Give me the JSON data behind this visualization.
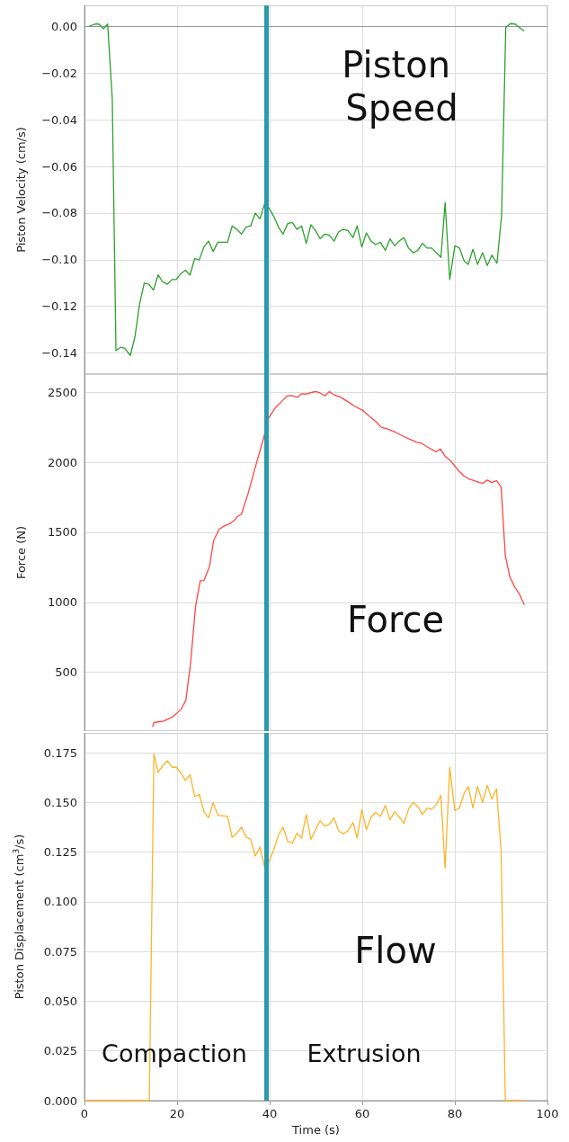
{
  "chart_data": [
    {
      "type": "line",
      "ylabel": "Piston Velocity (cm/s)",
      "annotations": [
        "Piston Speed"
      ],
      "xlim": [
        0,
        100
      ],
      "xticks": [
        0,
        20,
        40,
        60,
        80,
        100
      ],
      "ylim": [
        -0.149,
        0.009
      ],
      "yticks": [
        {
          "value": 0,
          "label": "0.00"
        },
        {
          "value": -0.02,
          "label": "−0.02"
        },
        {
          "value": -0.04,
          "label": "−0.04"
        },
        {
          "value": -0.06,
          "label": "−0.06"
        },
        {
          "value": -0.08,
          "label": "−0.08"
        },
        {
          "value": -0.1,
          "label": "−0.10"
        },
        {
          "value": -0.12,
          "label": "−0.12"
        },
        {
          "value": -0.14,
          "label": "−0.14"
        }
      ],
      "grid": true,
      "tick_labels": "y",
      "ref_lines": [
        {
          "axis": "x",
          "value": 39.3,
          "color": "#2a9aab"
        }
      ],
      "x": [
        1.0,
        2.3,
        3.1,
        4.1,
        5.0,
        6.0,
        6.8,
        7.8,
        8.7,
        9.9,
        10.9,
        11.9,
        12.9,
        13.9,
        14.9,
        15.9,
        16.9,
        17.9,
        18.9,
        19.8,
        20.8,
        21.8,
        22.8,
        23.8,
        24.8,
        25.8,
        26.8,
        27.8,
        28.8,
        30.9,
        31.9,
        32.9,
        33.9,
        34.9,
        35.9,
        36.9,
        37.9,
        38.9,
        39.9,
        40.9,
        41.9,
        42.9,
        43.9,
        44.9,
        45.9,
        46.9,
        47.9,
        48.9,
        49.9,
        50.9,
        51.9,
        52.9,
        53.9,
        54.9,
        55.9,
        56.9,
        58.0,
        58.9,
        59.9,
        60.9,
        61.9,
        62.9,
        63.9,
        65.0,
        66.0,
        67.0,
        68.0,
        69.0,
        70.0,
        71.0,
        72.0,
        73.0,
        74.0,
        75.0,
        76.0,
        77.0,
        77.9,
        78.9,
        80.0,
        81.0,
        82.0,
        82.9,
        83.9,
        84.9,
        86.0,
        87.0,
        88.0,
        89.1,
        90.1,
        91.0,
        92.0,
        93.0,
        94.0,
        95.0
      ],
      "series": [
        {
          "color": "#2ca02c",
          "values": [
            0,
            0.001,
            0.001,
            -0.001,
            0.001,
            -0.031,
            -0.139,
            -0.1375,
            -0.138,
            -0.141,
            -0.133,
            -0.119,
            -0.11,
            -0.1105,
            -0.113,
            -0.1065,
            -0.1095,
            -0.1105,
            -0.1085,
            -0.1085,
            -0.106,
            -0.1045,
            -0.1065,
            -0.0995,
            -0.1,
            -0.0945,
            -0.092,
            -0.0965,
            -0.0925,
            -0.0925,
            -0.0855,
            -0.087,
            -0.089,
            -0.086,
            -0.0855,
            -0.08,
            -0.0825,
            -0.076,
            -0.078,
            -0.0815,
            -0.086,
            -0.089,
            -0.0845,
            -0.084,
            -0.087,
            -0.0855,
            -0.093,
            -0.085,
            -0.0875,
            -0.091,
            -0.089,
            -0.0895,
            -0.092,
            -0.088,
            -0.087,
            -0.0875,
            -0.0905,
            -0.0855,
            -0.0945,
            -0.0885,
            -0.092,
            -0.0935,
            -0.0925,
            -0.096,
            -0.091,
            -0.094,
            -0.092,
            -0.0905,
            -0.095,
            -0.097,
            -0.096,
            -0.093,
            -0.095,
            -0.095,
            -0.097,
            -0.099,
            -0.0755,
            -0.1085,
            -0.094,
            -0.095,
            -0.1005,
            -0.102,
            -0.0955,
            -0.102,
            -0.097,
            -0.1025,
            -0.098,
            -0.1015,
            -0.081,
            -0.0005,
            0.0012,
            0.001,
            -0.0005,
            -0.002
          ]
        }
      ]
    },
    {
      "type": "line",
      "ylabel": "Force (N)",
      "annotations": [
        "Force"
      ],
      "xlim": [
        0,
        100
      ],
      "xticks": [
        0,
        20,
        40,
        60,
        80,
        100
      ],
      "ylim": [
        80,
        2630
      ],
      "yticks": [
        500,
        1000,
        1500,
        2000,
        2500
      ],
      "grid": true,
      "tick_labels": "y",
      "ref_lines": [
        {
          "axis": "x",
          "value": 39.3,
          "color": "#2a9aab"
        }
      ],
      "x": [
        14.7,
        15.0,
        17.1,
        18.8,
        19.8,
        20.9,
        21.9,
        22.9,
        24.0,
        25.0,
        25.8,
        27.0,
        27.9,
        29.1,
        30.2,
        31.4,
        32.6,
        33.0,
        33.9,
        35.3,
        36.8,
        38.8,
        39.5,
        41.1,
        42.6,
        43.8,
        44.7,
        46.0,
        46.9,
        47.8,
        49.2,
        50.0,
        50.9,
        51.9,
        52.9,
        53.9,
        55.4,
        57.0,
        58.5,
        60.1,
        61.6,
        62.8,
        64.1,
        65.5,
        67.1,
        68.6,
        70.2,
        71.7,
        72.9,
        74.4,
        76.0,
        76.9,
        77.9,
        79.1,
        80.6,
        82.0,
        82.9,
        84.1,
        85.3,
        86.0,
        87.0,
        88.0,
        89.0,
        90.0,
        90.9,
        91.9,
        93.0,
        94.0,
        95.0
      ],
      "series": [
        {
          "color": "#ff4545",
          "values": [
            110,
            141,
            152,
            177,
            203,
            237,
            301,
            559,
            972,
            1153,
            1155,
            1256,
            1442,
            1522,
            1545,
            1561,
            1592,
            1612,
            1630,
            1772,
            1953,
            2185,
            2301,
            2384,
            2435,
            2474,
            2477,
            2464,
            2490,
            2487,
            2500,
            2505,
            2495,
            2474,
            2505,
            2482,
            2464,
            2430,
            2397,
            2371,
            2327,
            2294,
            2250,
            2237,
            2216,
            2190,
            2165,
            2144,
            2134,
            2103,
            2074,
            2095,
            2043,
            2010,
            1948,
            1901,
            1883,
            1870,
            1855,
            1850,
            1873,
            1855,
            1868,
            1824,
            1334,
            1179,
            1106,
            1055,
            983
          ]
        }
      ]
    },
    {
      "type": "line",
      "ylabel": "Piston Displacement (cm$^{3}$/s)",
      "xlabel": "Time (s)",
      "annotations": [
        "Flow",
        "Compaction",
        "Extrusion"
      ],
      "xlim": [
        0,
        100
      ],
      "xticks": [
        0,
        20,
        40,
        60,
        80,
        100
      ],
      "ylim": [
        0,
        0.185
      ],
      "yticks": [
        {
          "value": 0,
          "label": "0.000"
        },
        {
          "value": 0.025,
          "label": "0.025"
        },
        {
          "value": 0.05,
          "label": "0.050"
        },
        {
          "value": 0.075,
          "label": "0.075"
        },
        {
          "value": 0.1,
          "label": "0.100"
        },
        {
          "value": 0.125,
          "label": "0.125"
        },
        {
          "value": 0.15,
          "label": "0.150"
        },
        {
          "value": 0.175,
          "label": "0.175"
        }
      ],
      "grid": true,
      "ref_lines": [
        {
          "axis": "x",
          "value": 39.3,
          "color": "#2a9aab"
        }
      ],
      "x": [
        0,
        14.0,
        15.0,
        15.9,
        16.9,
        17.9,
        18.9,
        19.8,
        20.8,
        21.8,
        22.8,
        23.8,
        24.8,
        25.8,
        26.8,
        27.8,
        28.8,
        30.9,
        31.9,
        32.9,
        33.9,
        34.9,
        35.9,
        36.9,
        37.9,
        38.9,
        39.9,
        40.9,
        41.9,
        42.9,
        43.9,
        44.9,
        45.9,
        46.9,
        47.9,
        48.9,
        49.9,
        50.9,
        51.9,
        52.9,
        53.9,
        54.9,
        55.9,
        56.9,
        58.0,
        58.9,
        59.9,
        60.9,
        61.9,
        62.9,
        63.9,
        65.0,
        66.0,
        67.0,
        68.0,
        69.0,
        70.0,
        71.0,
        72.0,
        73.0,
        74.0,
        75.0,
        76.0,
        77.0,
        77.9,
        78.9,
        80.0,
        81.0,
        82.0,
        82.9,
        83.9,
        84.9,
        86.0,
        87.0,
        88.0,
        89.0,
        90.0,
        90.9,
        95.0
      ],
      "series": [
        {
          "color": "#ffb327",
          "values": [
            0,
            0,
            0.1745,
            0.165,
            0.1685,
            0.171,
            0.1677,
            0.1677,
            0.165,
            0.161,
            0.164,
            0.153,
            0.154,
            0.1454,
            0.1423,
            0.15,
            0.1436,
            0.143,
            0.1324,
            0.1345,
            0.1376,
            0.1327,
            0.1314,
            0.123,
            0.1276,
            0.1176,
            0.1205,
            0.1263,
            0.1336,
            0.1376,
            0.1303,
            0.1296,
            0.1345,
            0.1321,
            0.1439,
            0.1314,
            0.1363,
            0.1408,
            0.1381,
            0.139,
            0.1423,
            0.1357,
            0.1343,
            0.1357,
            0.1399,
            0.1321,
            0.1463,
            0.1363,
            0.1426,
            0.145,
            0.143,
            0.1485,
            0.1412,
            0.1454,
            0.1426,
            0.1394,
            0.1466,
            0.15,
            0.1481,
            0.1439,
            0.1472,
            0.1466,
            0.149,
            0.1536,
            0.1168,
            0.1677,
            0.1459,
            0.1472,
            0.1545,
            0.158,
            0.1472,
            0.158,
            0.15,
            0.1586,
            0.1517,
            0.1568,
            0.1254,
            0,
            0
          ]
        }
      ]
    }
  ]
}
